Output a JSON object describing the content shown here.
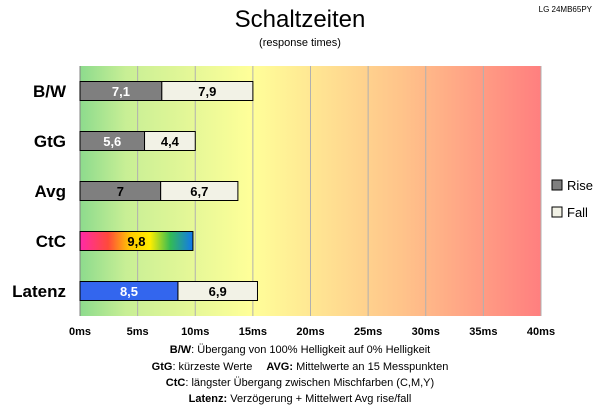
{
  "model": "LG 24MB65PY",
  "chart_data": {
    "type": "bar",
    "orientation": "horizontal",
    "stacked": true,
    "title": "Schaltzeiten",
    "subtitle": "(response times)",
    "categories": [
      "B/W",
      "GtG",
      "Avg",
      "CtC",
      "Latenz"
    ],
    "series": [
      {
        "name": "Rise",
        "values": [
          7.1,
          5.6,
          7,
          9.8,
          8.5
        ],
        "labels": [
          "7,1",
          "5,6",
          "7",
          "9,8",
          "8,5"
        ]
      },
      {
        "name": "Fall",
        "values": [
          7.9,
          4.4,
          6.7,
          0,
          6.9
        ],
        "labels": [
          "7,9",
          "4,4",
          "6,7",
          "",
          "6,9"
        ]
      }
    ],
    "xlim": [
      0,
      40
    ],
    "xticks": [
      0,
      5,
      10,
      15,
      20,
      25,
      30,
      35,
      40
    ],
    "xtick_labels": [
      "0ms",
      "5ms",
      "10ms",
      "15ms",
      "20ms",
      "25ms",
      "30ms",
      "35ms",
      "40ms"
    ],
    "grid": true,
    "legend_position": "right",
    "colors": {
      "rise": "#7f7f7f",
      "fall": "#f2f2e6",
      "latenz": "#3366ee",
      "bg_start": "#8ddb8d",
      "bg_mid": "#ffff99",
      "bg_end": "#ff7f7f"
    }
  },
  "footnotes": [
    {
      "key": "B/W",
      "text": ":  Übergang von 100% Helligkeit auf 0% Helligkeit"
    },
    {
      "key": "GtG",
      "text": ": kürzeste  Werte",
      "key2": "AVG:",
      "text2": " Mittelwerte  an 15 Messpunkten"
    },
    {
      "key": "CtC",
      "text": ": längster Übergang  zwischen Mischfarben  (C,M,Y)"
    },
    {
      "key": "Latenz:",
      "text": " Verzögerung  + Mittelwert  Avg rise/fall"
    }
  ]
}
